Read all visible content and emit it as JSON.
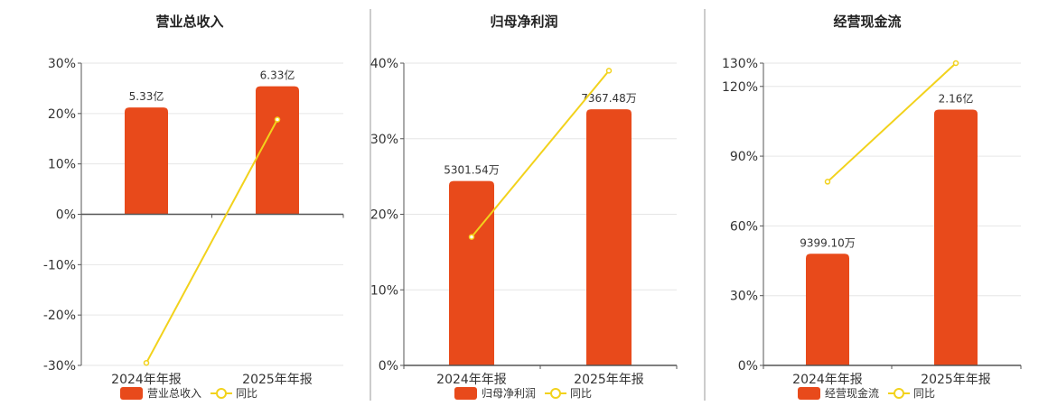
{
  "colors": {
    "bar": "#E84A1B",
    "line": "#F2D21C",
    "grid": "#e6e6e6",
    "axis": "#555555",
    "divider": "#999999"
  },
  "chart_data": [
    {
      "type": "bar",
      "title": "营业总收入",
      "categories": [
        "2024年年报",
        "2025年年报"
      ],
      "series": [
        {
          "name": "营业总收入",
          "type": "bar",
          "values": [
            21.2,
            25.4
          ],
          "labels": [
            "5.33亿",
            "6.33亿"
          ],
          "color": "#E84A1B"
        },
        {
          "name": "同比",
          "type": "line",
          "values": [
            -29.5,
            18.8
          ],
          "color": "#F2D21C"
        }
      ],
      "yticks": [
        "30%",
        "20%",
        "10%",
        "0%",
        "-10%",
        "-20%",
        "-30%"
      ],
      "ylim": [
        -30,
        30
      ],
      "grid": true,
      "legend_position": "bottom"
    },
    {
      "type": "bar",
      "title": "归母净利润",
      "categories": [
        "2024年年报",
        "2025年年报"
      ],
      "series": [
        {
          "name": "归母净利润",
          "type": "bar",
          "values": [
            24.4,
            33.9
          ],
          "labels": [
            "5301.54万",
            "7367.48万"
          ],
          "color": "#E84A1B"
        },
        {
          "name": "同比",
          "type": "line",
          "values": [
            17.0,
            39.0
          ],
          "color": "#F2D21C"
        }
      ],
      "yticks": [
        "40%",
        "30%",
        "20%",
        "10%",
        "0%"
      ],
      "ylim": [
        0,
        40
      ],
      "grid": true,
      "legend_position": "bottom"
    },
    {
      "type": "bar",
      "title": "经营现金流",
      "categories": [
        "2024年年报",
        "2025年年报"
      ],
      "series": [
        {
          "name": "经营现金流",
          "type": "bar",
          "values": [
            48.0,
            110.0
          ],
          "labels": [
            "9399.10万",
            "2.16亿"
          ],
          "color": "#E84A1B"
        },
        {
          "name": "同比",
          "type": "line",
          "values": [
            79.0,
            130.0
          ],
          "color": "#F2D21C"
        }
      ],
      "yticks": [
        "130%",
        "120%",
        "90%",
        "60%",
        "30%",
        "0%"
      ],
      "ytick_values": [
        130,
        120,
        90,
        60,
        30,
        0
      ],
      "ylim": [
        0,
        130
      ],
      "grid": true,
      "legend_position": "bottom"
    }
  ]
}
